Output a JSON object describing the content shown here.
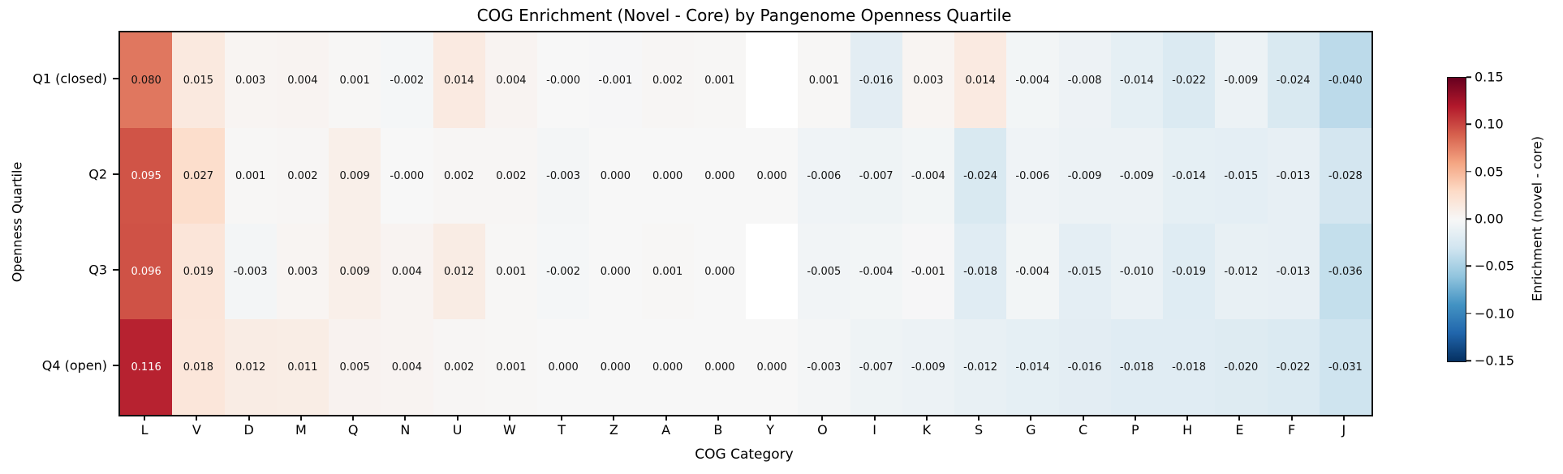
{
  "chart_data": {
    "type": "heatmap",
    "title": "COG Enrichment (Novel - Core) by Pangenome Openness Quartile",
    "xlabel": "COG Category",
    "ylabel": "Openness Quartile",
    "colorbar_label": "Enrichment (novel - core)",
    "colorbar_ticks": [
      "0.15",
      "0.10",
      "0.05",
      "0.00",
      "−0.05",
      "−0.10",
      "−0.15"
    ],
    "vmin": -0.15,
    "vmax": 0.15,
    "colormap": "RdBu_r",
    "colormap_anchors_min_to_max": [
      "#053061",
      "#2166ac",
      "#4393c3",
      "#92c5de",
      "#d1e5f0",
      "#f7f7f7",
      "#fddbc7",
      "#f4a582",
      "#d6604d",
      "#b2182b",
      "#67001f"
    ],
    "missing_cell_color": "#ffffff",
    "categories": [
      "L",
      "V",
      "D",
      "M",
      "Q",
      "N",
      "U",
      "W",
      "T",
      "Z",
      "A",
      "B",
      "Y",
      "O",
      "I",
      "K",
      "S",
      "G",
      "C",
      "P",
      "H",
      "E",
      "F",
      "J"
    ],
    "rows": [
      "Q1 (closed)",
      "Q2",
      "Q3",
      "Q4 (open)"
    ],
    "values": [
      [
        0.08,
        0.015,
        0.003,
        0.004,
        0.001,
        -0.002,
        0.014,
        0.004,
        -0.0,
        -0.001,
        0.002,
        0.001,
        null,
        0.001,
        -0.016,
        0.003,
        0.014,
        -0.004,
        -0.008,
        -0.014,
        -0.022,
        -0.009,
        -0.024,
        -0.04
      ],
      [
        0.095,
        0.027,
        0.001,
        0.002,
        0.009,
        -0.0,
        0.002,
        0.002,
        -0.003,
        0.0,
        0.0,
        0.0,
        0.0,
        -0.006,
        -0.007,
        -0.004,
        -0.024,
        -0.006,
        -0.009,
        -0.009,
        -0.014,
        -0.015,
        -0.013,
        -0.028
      ],
      [
        0.096,
        0.019,
        -0.003,
        0.003,
        0.009,
        0.004,
        0.012,
        0.001,
        -0.002,
        0.0,
        0.001,
        0.0,
        null,
        -0.005,
        -0.004,
        -0.001,
        -0.018,
        -0.004,
        -0.015,
        -0.01,
        -0.019,
        -0.012,
        -0.013,
        -0.036
      ],
      [
        0.116,
        0.018,
        0.012,
        0.011,
        0.005,
        0.004,
        0.002,
        0.001,
        0.0,
        0.0,
        0.0,
        0.0,
        0.0,
        -0.003,
        -0.007,
        -0.009,
        -0.012,
        -0.014,
        -0.016,
        -0.018,
        -0.018,
        -0.02,
        -0.022,
        -0.031
      ]
    ],
    "labels": [
      [
        "0.080",
        "0.015",
        "0.003",
        "0.004",
        "0.001",
        "-0.002",
        "0.014",
        "0.004",
        "-0.000",
        "-0.001",
        "0.002",
        "0.001",
        "",
        "0.001",
        "-0.016",
        "0.003",
        "0.014",
        "-0.004",
        "-0.008",
        "-0.014",
        "-0.022",
        "-0.009",
        "-0.024",
        "-0.040"
      ],
      [
        "0.095",
        "0.027",
        "0.001",
        "0.002",
        "0.009",
        "-0.000",
        "0.002",
        "0.002",
        "-0.003",
        "0.000",
        "0.000",
        "0.000",
        "0.000",
        "-0.006",
        "-0.007",
        "-0.004",
        "-0.024",
        "-0.006",
        "-0.009",
        "-0.009",
        "-0.014",
        "-0.015",
        "-0.013",
        "-0.028"
      ],
      [
        "0.096",
        "0.019",
        "-0.003",
        "0.003",
        "0.009",
        "0.004",
        "0.012",
        "0.001",
        "-0.002",
        "0.000",
        "0.001",
        "0.000",
        "",
        "-0.005",
        "-0.004",
        "-0.001",
        "-0.018",
        "-0.004",
        "-0.015",
        "-0.010",
        "-0.019",
        "-0.012",
        "-0.013",
        "-0.036"
      ],
      [
        "0.116",
        "0.018",
        "0.012",
        "0.011",
        "0.005",
        "0.004",
        "0.002",
        "0.001",
        "0.000",
        "0.000",
        "0.000",
        "0.000",
        "0.000",
        "-0.003",
        "-0.007",
        "-0.009",
        "-0.012",
        "-0.014",
        "-0.016",
        "-0.018",
        "-0.018",
        "-0.020",
        "-0.022",
        "-0.031"
      ]
    ]
  }
}
